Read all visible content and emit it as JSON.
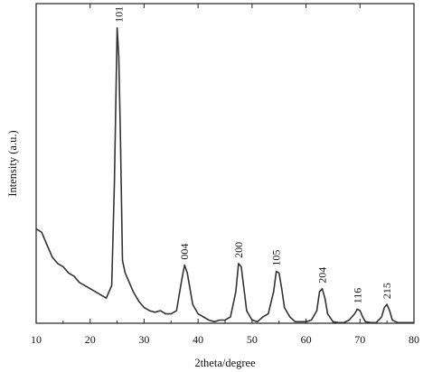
{
  "chart_data": {
    "type": "line",
    "title": "",
    "xlabel": "2theta/degree",
    "ylabel": "Intensity (a.u.)",
    "xlim": [
      10,
      80
    ],
    "ylim": [
      0,
      100
    ],
    "x_ticks": [
      "10",
      "20",
      "30",
      "40",
      "50",
      "60",
      "70",
      "80"
    ],
    "y_ticks_labeled": false,
    "grid": false,
    "legend": "none",
    "line_color": "#333333",
    "series": [
      {
        "x": [
          10,
          11,
          12,
          13,
          14,
          15,
          16,
          17,
          18,
          19,
          20,
          21,
          22,
          23,
          24,
          24.5,
          25,
          25.3,
          25.6,
          26,
          26.5,
          27,
          28,
          29,
          30,
          31,
          32,
          33,
          34,
          35,
          36,
          37,
          37.5,
          38,
          38.5,
          39,
          40,
          41,
          42,
          43,
          44,
          45,
          46,
          47,
          47.5,
          48,
          48.5,
          49,
          50,
          51,
          52,
          53,
          54,
          54.5,
          55,
          55.5,
          56,
          57,
          58,
          59,
          60,
          61,
          62,
          62.5,
          63,
          63.5,
          64,
          65,
          66,
          67,
          68,
          69,
          69.5,
          70,
          70.5,
          71,
          72,
          73,
          74,
          74.5,
          75,
          75.5,
          76,
          77,
          78,
          79,
          80
        ],
        "y": [
          30,
          29,
          25,
          21,
          19,
          18,
          16,
          15,
          13,
          12,
          11,
          10,
          9,
          8,
          12,
          45,
          94,
          85,
          60,
          20,
          16,
          14,
          10,
          7,
          5,
          4,
          3.5,
          4,
          3,
          3,
          4,
          14,
          18.5,
          16,
          11,
          6,
          3,
          2,
          1,
          0.5,
          1,
          1,
          2,
          10,
          19,
          18,
          11,
          4,
          1,
          0.5,
          2,
          3,
          10,
          16.5,
          16,
          11,
          5,
          2,
          0.5,
          0.5,
          0.5,
          1,
          4,
          10,
          11,
          8,
          3,
          0.5,
          0.2,
          0.2,
          1,
          3,
          4.5,
          4,
          2,
          0.5,
          0.2,
          0.2,
          2,
          5,
          6,
          4,
          1,
          0.2,
          0.2,
          0.2,
          0.2
        ]
      }
    ],
    "annotations": [
      {
        "text": "101",
        "x": 25.3,
        "y": 94
      },
      {
        "text": "004",
        "x": 37.5,
        "y": 18.5
      },
      {
        "text": "200",
        "x": 47.5,
        "y": 19
      },
      {
        "text": "105",
        "x": 54.5,
        "y": 16.5
      },
      {
        "text": "204",
        "x": 63,
        "y": 11
      },
      {
        "text": "116",
        "x": 69.5,
        "y": 4.5
      },
      {
        "text": "215",
        "x": 75,
        "y": 6
      }
    ]
  }
}
